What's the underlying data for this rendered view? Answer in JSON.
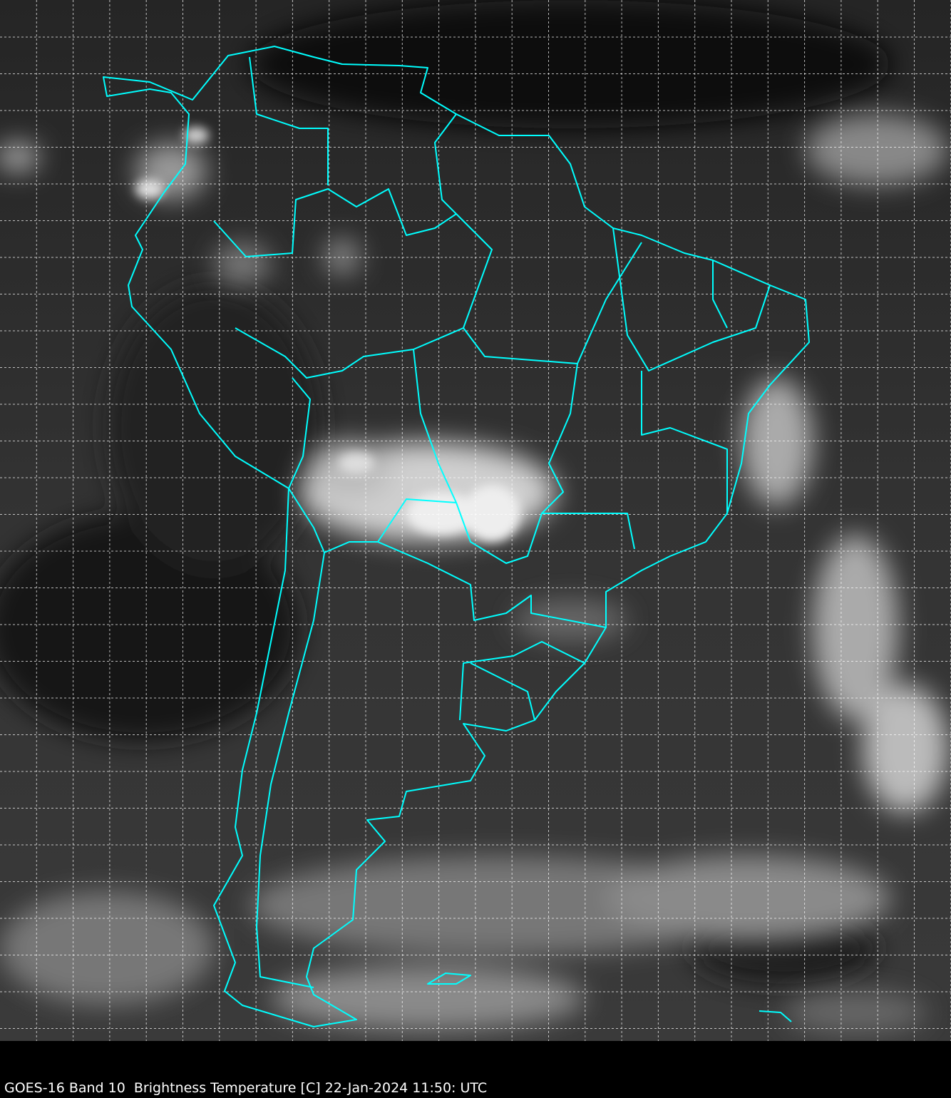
{
  "caption": "GOES-16 Band 10  Brightness Temperature [C] 22-Jan-2024 11:50: UTC",
  "map": {
    "region": "South America",
    "colors": {
      "boundaries": "#00ffff",
      "grid": "#ffffff",
      "background": "#000000"
    },
    "grid": "dashed lat/lon lines"
  }
}
